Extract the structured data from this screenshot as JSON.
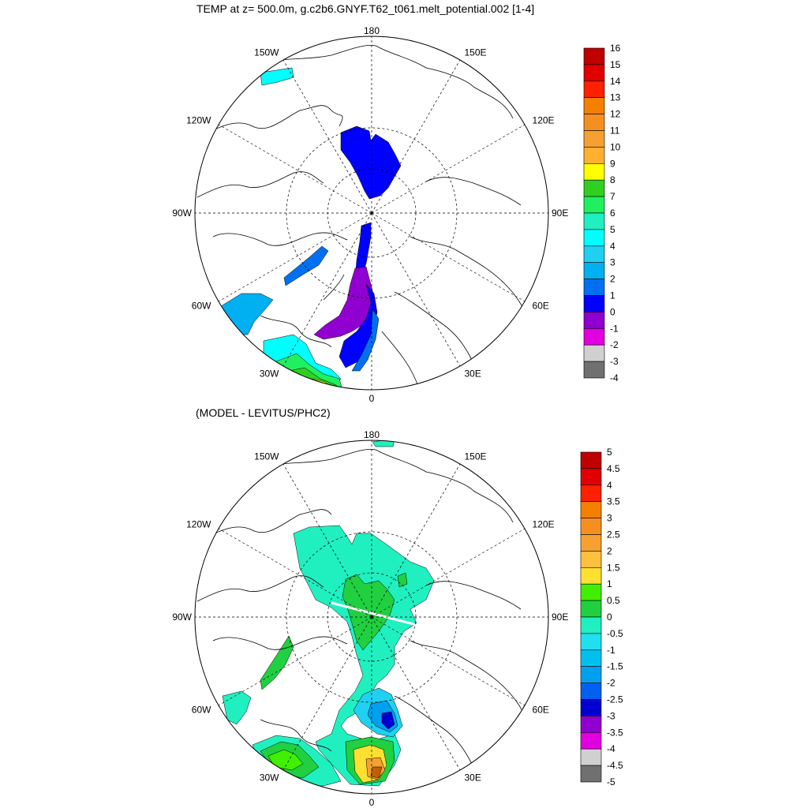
{
  "panels": [
    {
      "id": "top",
      "title": "TEMP at z= 500.0m, g.c2b6.GNYF.T62_t061.melt_potential.002 [1-4]",
      "meridian_labels": {
        "0": "0",
        "30E": "30E",
        "60E": "60E",
        "90E": "90E",
        "120E": "120E",
        "150E": "150E",
        "180": "180",
        "150W": "150W",
        "120W": "120W",
        "90W": "90W",
        "60W": "60W",
        "30W": "30W"
      },
      "colorbar": {
        "labels": [
          "16",
          "15",
          "14",
          "13",
          "12",
          "11",
          "10",
          "9",
          "8",
          "7",
          "6",
          "5",
          "4",
          "3",
          "2",
          "1",
          "0",
          "-1",
          "-2",
          "-3",
          "-4"
        ],
        "colors": [
          "#c00000",
          "#e00000",
          "#ff2000",
          "#f58000",
          "#f59020",
          "#f5a030",
          "#ffb030",
          "#ffff00",
          "#30d020",
          "#20f060",
          "#20f0c0",
          "#00ffff",
          "#20d0f0",
          "#00b0f0",
          "#0070f0",
          "#0000ff",
          "#9000d0",
          "#e000e0",
          "#d0d0d0",
          "#707070"
        ]
      }
    },
    {
      "id": "bottom",
      "title": "(MODEL - LEVITUS/PHC2)",
      "meridian_labels": {
        "0": "0",
        "30E": "30E",
        "60E": "60E",
        "90E": "90E",
        "120E": "120E",
        "150E": "150E",
        "180": "180",
        "150W": "150W",
        "120W": "120W",
        "90W": "90W",
        "60W": "60W",
        "30W": "30W"
      },
      "colorbar": {
        "labels": [
          "5",
          "4.5",
          "4",
          "3.5",
          "3",
          "2.5",
          "2",
          "1.5",
          "1",
          "0.5",
          "0",
          "-0.5",
          "-1",
          "-1.5",
          "-2",
          "-2.5",
          "-3",
          "-3.5",
          "-4",
          "-4.5",
          "-5"
        ],
        "colors": [
          "#c00000",
          "#e00000",
          "#ff2000",
          "#f58000",
          "#f59020",
          "#f5a030",
          "#ffc040",
          "#ffe030",
          "#40f000",
          "#20d040",
          "#20f0c0",
          "#20e0f0",
          "#00c0f0",
          "#00a0f0",
          "#0060f0",
          "#0000d0",
          "#9000d0",
          "#e000e0",
          "#d0d0d0",
          "#707070"
        ]
      }
    }
  ],
  "colors": {
    "purple": "#9000d0",
    "blue": "#0000ff",
    "blue_1": "#0070f0",
    "blue_3": "#00b0f0",
    "cyan": "#00ffff",
    "lightcyan": "#20d0f0",
    "green": "#30d020",
    "green6": "#20f060",
    "yellow": "#ffff00",
    "aqua": "#20f0c0",
    "green05": "#20d040",
    "green1": "#40f000",
    "yellow15": "#ffe030",
    "orange": "#f5a030",
    "orange25": "#f58000",
    "brown": "#c06000",
    "darkblue": "#0000d0",
    "lblue": "#00a0f0",
    "mblue": "#0060f0"
  }
}
